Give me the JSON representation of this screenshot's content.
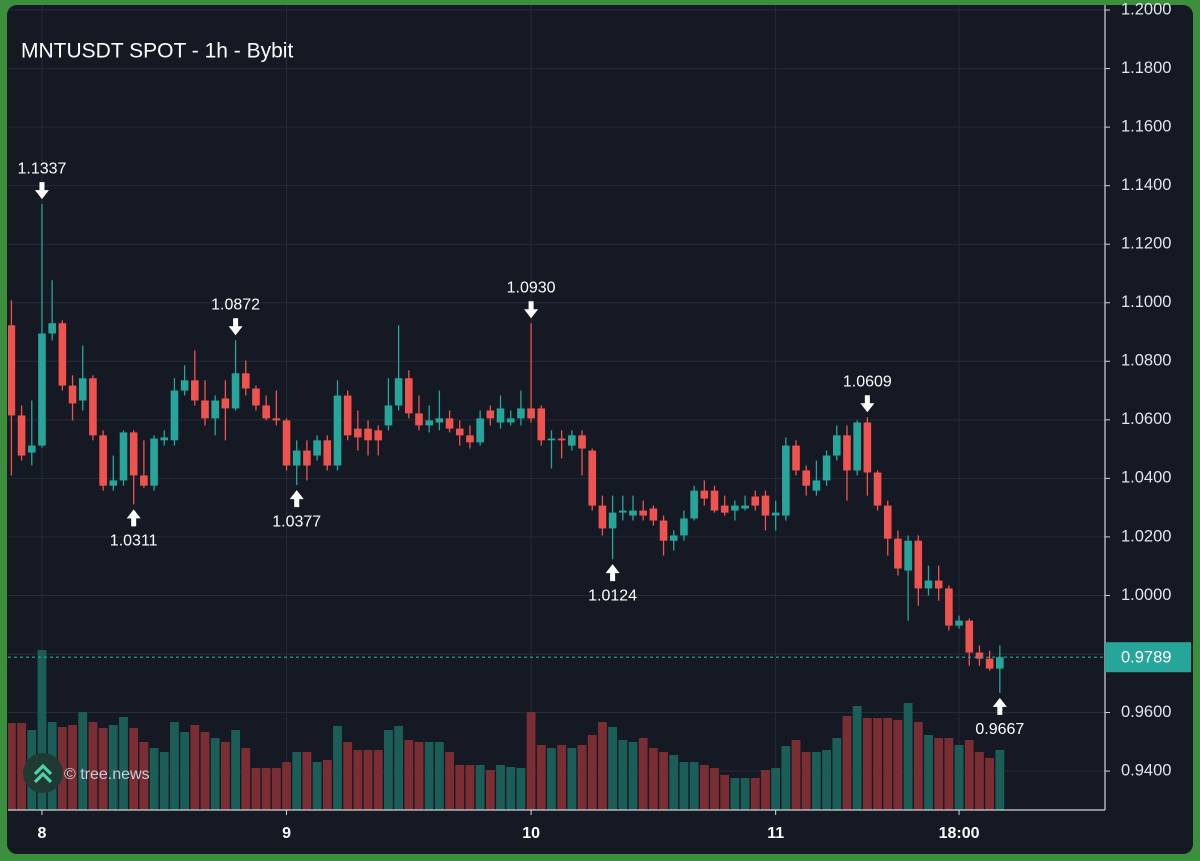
{
  "chart_data": {
    "type": "candlestick",
    "title": "MNTUSDT SPOT - 1h - Bybit",
    "watermark": "© tree.news",
    "categories": [
      null,
      null,
      null,
      "8",
      null,
      null,
      null,
      null,
      null,
      null,
      null,
      null,
      null,
      null,
      null,
      null,
      null,
      null,
      null,
      null,
      null,
      null,
      null,
      null,
      null,
      null,
      null,
      "9",
      null,
      null,
      null,
      null,
      null,
      null,
      null,
      null,
      null,
      null,
      null,
      null,
      null,
      null,
      null,
      null,
      null,
      null,
      null,
      null,
      null,
      null,
      null,
      "10",
      null,
      null,
      null,
      null,
      null,
      null,
      null,
      null,
      null,
      null,
      null,
      null,
      null,
      null,
      null,
      null,
      null,
      null,
      null,
      null,
      null,
      null,
      null,
      "11",
      null,
      null,
      null,
      null,
      null,
      null,
      null,
      null,
      null,
      null,
      null,
      null,
      null,
      null,
      null,
      null,
      null,
      "18:00",
      null,
      null,
      null,
      null
    ],
    "open": [
      1.0923,
      1.0615,
      1.0488,
      1.0512,
      1.0895,
      1.093,
      1.0717,
      1.0666,
      1.0742,
      1.0547,
      1.0375,
      1.0393,
      1.0557,
      1.041,
      1.0375,
      1.053,
      1.053,
      1.07,
      1.0735,
      1.0666,
      1.0605,
      1.0673,
      1.0639,
      1.0759,
      1.0707,
      1.0649,
      1.0605,
      1.0598,
      1.0444,
      1.0495,
      1.0478,
      1.053,
      1.0444,
      1.0683,
      1.057,
      1.057,
      1.0564,
      1.0581,
      1.0649,
      1.0742,
      1.0622,
      1.0581,
      1.0591,
      1.0605,
      1.057,
      1.0547,
      1.0523,
      1.0632,
      1.0591,
      1.0591,
      1.0605,
      1.0639,
      1.0639,
      1.053,
      1.0536,
      1.0512,
      1.0547,
      1.0495,
      1.0307,
      1.0229,
      1.0283,
      1.0273,
      1.029,
      1.0297,
      1.0256,
      1.0187,
      1.0205,
      1.0263,
      1.0358,
      1.0358,
      1.0307,
      1.029,
      1.0297,
      1.0338,
      1.0341,
      1.0273,
      1.0273,
      1.0512,
      1.0427,
      1.0358,
      1.0393,
      1.0478,
      1.0547,
      1.0427,
      1.0591,
      1.042,
      1.0307,
      1.0194,
      1.0085,
      1.0187,
      1.0024,
      1.0051,
      1.0024,
      0.9897,
      0.9914,
      0.9805,
      0.9784,
      0.975
    ],
    "high": [
      1.1008,
      1.0649,
      1.0666,
      1.1337,
      1.1077,
      1.094,
      1.0752,
      1.0854,
      1.0752,
      1.0564,
      1.0478,
      1.0564,
      1.0564,
      1.053,
      1.0547,
      1.0564,
      1.0742,
      1.0786,
      1.0837,
      1.0735,
      1.0683,
      1.0735,
      1.0872,
      1.0803,
      1.0717,
      1.0683,
      1.07,
      1.0605,
      1.053,
      1.053,
      1.0547,
      1.0547,
      1.0735,
      1.07,
      1.0632,
      1.0598,
      1.0581,
      1.0742,
      1.0923,
      1.0769,
      1.0683,
      1.0649,
      1.07,
      1.0632,
      1.0598,
      1.0581,
      1.0632,
      1.0649,
      1.0683,
      1.0632,
      1.07,
      1.093,
      1.0649,
      1.0564,
      1.0564,
      1.0564,
      1.0564,
      1.0502,
      1.0341,
      1.0341,
      1.0341,
      1.0341,
      1.0324,
      1.0307,
      1.0273,
      1.0222,
      1.029,
      1.0375,
      1.0393,
      1.0375,
      1.0341,
      1.0324,
      1.0341,
      1.0358,
      1.0358,
      1.0324,
      1.054,
      1.053,
      1.0444,
      1.0461,
      1.0495,
      1.0581,
      1.0581,
      1.0598,
      1.0609,
      1.0427,
      1.0324,
      1.0222,
      1.0205,
      1.0205,
      1.0102,
      1.0102,
      1.0034,
      0.9931,
      0.9921,
      0.9829,
      0.9811,
      0.9829
    ],
    "low": [
      1.041,
      1.0461,
      1.0444,
      1.0505,
      1.0871,
      1.07,
      1.0598,
      1.0632,
      1.053,
      1.0358,
      1.0358,
      1.0375,
      1.0311,
      1.0368,
      1.0358,
      1.0512,
      1.0512,
      1.0683,
      1.0649,
      1.0581,
      1.0547,
      1.053,
      1.0632,
      1.0683,
      1.0632,
      1.0598,
      1.0581,
      1.0427,
      1.0377,
      1.0393,
      1.0461,
      1.0427,
      1.0427,
      1.053,
      1.0495,
      1.0478,
      1.0478,
      1.0564,
      1.0632,
      1.0605,
      1.0564,
      1.0557,
      1.0564,
      1.0557,
      1.0512,
      1.0502,
      1.0512,
      1.0581,
      1.057,
      1.0581,
      1.0581,
      1.0591,
      1.0512,
      1.0434,
      1.0468,
      1.0495,
      1.041,
      1.029,
      1.0205,
      1.0124,
      1.0256,
      1.0256,
      1.0256,
      1.0239,
      1.0136,
      1.0153,
      1.0187,
      1.0256,
      1.0307,
      1.0283,
      1.0273,
      1.0256,
      1.029,
      1.029,
      1.0222,
      1.0222,
      1.0256,
      1.041,
      1.0341,
      1.0341,
      1.0375,
      1.0461,
      1.0324,
      1.041,
      1.0341,
      1.029,
      1.0136,
      1.0068,
      0.9914,
      0.9965,
      1.0,
      0.9982,
      0.988,
      0.9887,
      0.976,
      0.976,
      0.9743,
      0.9667
    ],
    "close": [
      1.0615,
      1.0478,
      1.0512,
      1.0895,
      1.093,
      1.0717,
      1.0656,
      1.0742,
      1.0547,
      1.0375,
      1.0393,
      1.0557,
      1.041,
      1.0375,
      1.0536,
      1.054,
      1.07,
      1.0735,
      1.0666,
      1.0605,
      1.0666,
      1.0639,
      1.0759,
      1.0707,
      1.0649,
      1.0605,
      1.0598,
      1.0444,
      1.0495,
      1.0444,
      1.053,
      1.0444,
      1.0683,
      1.0547,
      1.054,
      1.053,
      1.053,
      1.0649,
      1.0742,
      1.0622,
      1.0581,
      1.0598,
      1.0605,
      1.057,
      1.0547,
      1.0523,
      1.0605,
      1.0605,
      1.0639,
      1.0605,
      1.0639,
      1.0605,
      1.053,
      1.0536,
      1.053,
      1.0547,
      1.0502,
      1.0307,
      1.0229,
      1.0283,
      1.029,
      1.029,
      1.0273,
      1.0256,
      1.0187,
      1.0205,
      1.0263,
      1.0358,
      1.0331,
      1.029,
      1.0283,
      1.0307,
      1.0307,
      1.0307,
      1.0273,
      1.0283,
      1.0512,
      1.0427,
      1.0375,
      1.0393,
      1.0478,
      1.0547,
      1.0427,
      1.0591,
      1.042,
      1.0307,
      1.0194,
      1.0092,
      1.0187,
      1.0024,
      1.0051,
      1.0024,
      0.9897,
      0.9914,
      0.9805,
      0.9784,
      0.975,
      0.9789
    ],
    "volume": [
      87,
      87,
      80,
      160,
      88,
      83,
      85,
      98,
      88,
      82,
      85,
      93,
      82,
      68,
      62,
      58,
      88,
      78,
      85,
      78,
      72,
      68,
      80,
      62,
      42,
      42,
      42,
      48,
      58,
      58,
      48,
      50,
      84,
      68,
      60,
      60,
      60,
      80,
      84,
      70,
      68,
      68,
      68,
      58,
      45,
      45,
      45,
      40,
      45,
      43,
      42,
      98,
      65,
      62,
      65,
      62,
      65,
      75,
      88,
      83,
      70,
      68,
      72,
      62,
      58,
      55,
      48,
      48,
      45,
      42,
      35,
      32,
      32,
      32,
      40,
      42,
      64,
      70,
      58,
      58,
      60,
      72,
      94,
      104,
      92,
      92,
      92,
      90,
      107,
      88,
      75,
      72,
      72,
      65,
      70,
      58,
      52,
      60
    ],
    "up_color": "#26a69a",
    "down_color": "#ef5350",
    "volume_up_color": "#1b5e58",
    "volume_down_color": "#7a2e33",
    "ylim": [
      0.9267,
      1.2007
    ],
    "yticks": [
      {
        "value": 0.94,
        "label": "0.9400"
      },
      {
        "value": 0.96,
        "label": "0.9600"
      },
      {
        "value": 0.98,
        "label": "0.9800"
      },
      {
        "value": 1.0,
        "label": "1.0000"
      },
      {
        "value": 1.02,
        "label": "1.0200"
      },
      {
        "value": 1.04,
        "label": "1.0400"
      },
      {
        "value": 1.06,
        "label": "1.0600"
      },
      {
        "value": 1.08,
        "label": "1.0800"
      },
      {
        "value": 1.1,
        "label": "1.1000"
      },
      {
        "value": 1.12,
        "label": "1.1200"
      },
      {
        "value": 1.14,
        "label": "1.1400"
      },
      {
        "value": 1.16,
        "label": "1.1600"
      },
      {
        "value": 1.18,
        "label": "1.1800"
      },
      {
        "value": 1.2,
        "label": "1.2000"
      }
    ],
    "grid": true,
    "last_price": {
      "value": 0.9789,
      "label": "0.9789"
    },
    "annotations": [
      {
        "kind": "high",
        "value": 1.1337,
        "label": "1.1337"
      },
      {
        "kind": "low",
        "value": 1.0311,
        "label": "1.0311"
      },
      {
        "kind": "high",
        "value": 1.0872,
        "label": "1.0872"
      },
      {
        "kind": "low",
        "value": 1.0377,
        "label": "1.0377"
      },
      {
        "kind": "high",
        "value": 1.093,
        "label": "1.0930"
      },
      {
        "kind": "low",
        "value": 1.0124,
        "label": "1.0124"
      },
      {
        "kind": "high",
        "value": 1.0609,
        "label": "1.0609"
      },
      {
        "kind": "low",
        "value": 0.9667,
        "label": "0.9667"
      }
    ]
  }
}
